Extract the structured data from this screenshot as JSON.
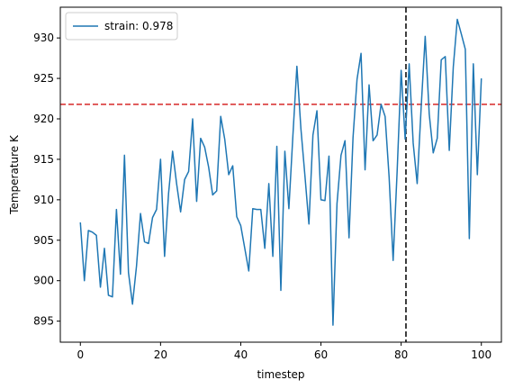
{
  "chart_data": {
    "type": "line",
    "title": "",
    "xlabel": "timestep",
    "ylabel": "Temperature K",
    "xlim": [
      -5,
      105
    ],
    "ylim": [
      892.4,
      933.8
    ],
    "xticks": [
      0,
      20,
      40,
      60,
      80,
      100
    ],
    "yticks": [
      895,
      900,
      905,
      910,
      915,
      920,
      925,
      930
    ],
    "grid": false,
    "legend_position": "top-left",
    "series": [
      {
        "name": "strain: 0.978",
        "color": "#1f77b4",
        "x": [
          0,
          1,
          2,
          3,
          4,
          5,
          6,
          7,
          8,
          9,
          10,
          11,
          12,
          13,
          14,
          15,
          16,
          17,
          18,
          19,
          20,
          21,
          22,
          23,
          24,
          25,
          26,
          27,
          28,
          29,
          30,
          31,
          32,
          33,
          34,
          35,
          36,
          37,
          38,
          39,
          40,
          41,
          42,
          43,
          44,
          45,
          46,
          47,
          48,
          49,
          50,
          51,
          52,
          53,
          54,
          55,
          56,
          57,
          58,
          59,
          60,
          61,
          62,
          63,
          64,
          65,
          66,
          67,
          68,
          69,
          70,
          71,
          72,
          73,
          74,
          75,
          76,
          77,
          78,
          79,
          80,
          81,
          82,
          83,
          84,
          85,
          86,
          87,
          88,
          89,
          90,
          91,
          92,
          93,
          94,
          95,
          96,
          97,
          98,
          99,
          100
        ],
        "y": [
          907.2,
          900.0,
          906.2,
          906.0,
          905.6,
          899.2,
          904.0,
          898.2,
          898.0,
          908.8,
          900.8,
          915.5,
          901.0,
          897.1,
          901.8,
          908.3,
          904.8,
          904.6,
          907.8,
          908.8,
          915.0,
          903.0,
          910.8,
          916.0,
          912.0,
          908.5,
          912.5,
          913.5,
          920.0,
          909.8,
          917.6,
          916.5,
          914.0,
          910.6,
          911.1,
          920.3,
          917.5,
          913.1,
          914.2,
          907.9,
          906.8,
          904.0,
          901.2,
          908.9,
          908.8,
          908.8,
          904.0,
          912.0,
          903.0,
          916.6,
          898.8,
          916.0,
          908.9,
          917.9,
          926.5,
          918.8,
          913.0,
          907.0,
          918.0,
          921.0,
          910.0,
          909.9,
          915.4,
          894.5,
          909.5,
          915.5,
          917.3,
          905.3,
          917.7,
          924.9,
          928.1,
          913.7,
          924.2,
          917.3,
          918.0,
          921.8,
          920.3,
          912.8,
          902.5,
          913.5,
          926.0,
          917.5,
          926.8,
          917.0,
          912.0,
          921.5,
          930.2,
          920.6,
          915.8,
          917.6,
          927.3,
          927.7,
          916.1,
          926.4,
          932.3,
          930.5,
          928.6,
          905.2,
          926.8,
          913.1,
          925.0
        ]
      }
    ],
    "reference_lines": [
      {
        "orientation": "horizontal",
        "value": 921.8,
        "color": "#d62728",
        "style": "dashed"
      },
      {
        "orientation": "vertical",
        "value": 81.2,
        "color": "#000000",
        "style": "dashed"
      }
    ]
  }
}
